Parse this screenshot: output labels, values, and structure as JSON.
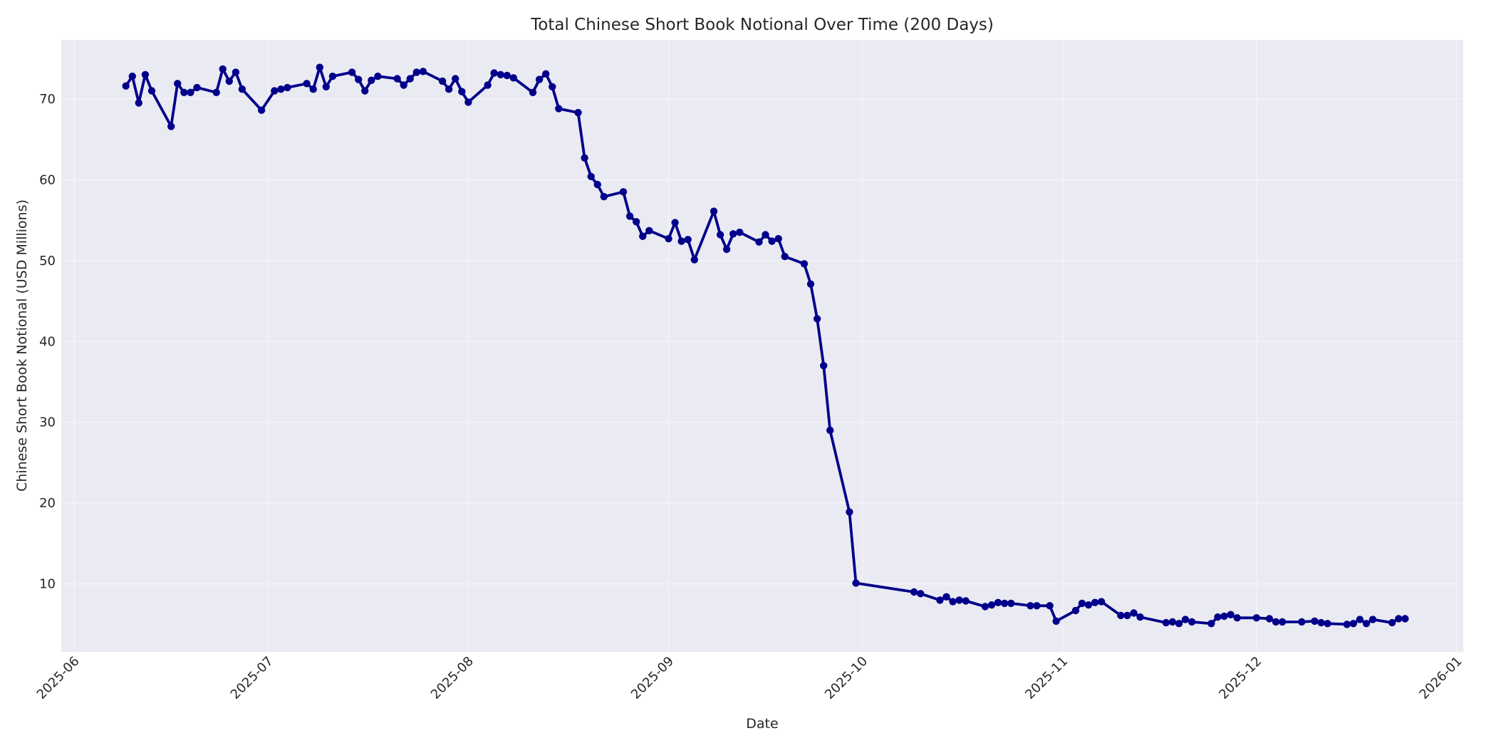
{
  "chart_data": {
    "type": "line",
    "title": "Total Chinese Short Book Notional Over Time (200 Days)",
    "xlabel": "Date",
    "ylabel": "Chinese Short Book Notional (USD Millions)",
    "x_ticks": [
      "2025-06",
      "2025-07",
      "2025-08",
      "2025-09",
      "2025-10",
      "2025-11",
      "2025-12",
      "2026-01"
    ],
    "y_ticks": [
      10,
      20,
      30,
      40,
      50,
      60,
      70
    ],
    "xlim": [
      "2025-05-30",
      "2026-01-02"
    ],
    "ylim": [
      1.6,
      77.3
    ],
    "grid": true,
    "legend": null,
    "line_color": "#00008b",
    "background_color": "#eaeaf2",
    "marker": "circle",
    "series": [
      {
        "name": "Total Chinese Short Book Notional",
        "x": [
          "2025-06-09",
          "2025-06-10",
          "2025-06-11",
          "2025-06-12",
          "2025-06-13",
          "2025-06-16",
          "2025-06-17",
          "2025-06-18",
          "2025-06-19",
          "2025-06-20",
          "2025-06-23",
          "2025-06-24",
          "2025-06-25",
          "2025-06-26",
          "2025-06-27",
          "2025-06-30",
          "2025-07-02",
          "2025-07-03",
          "2025-07-04",
          "2025-07-07",
          "2025-07-08",
          "2025-07-09",
          "2025-07-10",
          "2025-07-11",
          "2025-07-14",
          "2025-07-15",
          "2025-07-16",
          "2025-07-17",
          "2025-07-18",
          "2025-07-21",
          "2025-07-22",
          "2025-07-23",
          "2025-07-24",
          "2025-07-25",
          "2025-07-28",
          "2025-07-29",
          "2025-07-30",
          "2025-07-31",
          "2025-08-01",
          "2025-08-04",
          "2025-08-05",
          "2025-08-06",
          "2025-08-07",
          "2025-08-08",
          "2025-08-11",
          "2025-08-12",
          "2025-08-13",
          "2025-08-14",
          "2025-08-15",
          "2025-08-18",
          "2025-08-19",
          "2025-08-20",
          "2025-08-21",
          "2025-08-22",
          "2025-08-25",
          "2025-08-26",
          "2025-08-27",
          "2025-08-28",
          "2025-08-29",
          "2025-09-01",
          "2025-09-02",
          "2025-09-03",
          "2025-09-04",
          "2025-09-05",
          "2025-09-08",
          "2025-09-09",
          "2025-09-10",
          "2025-09-11",
          "2025-09-12",
          "2025-09-15",
          "2025-09-16",
          "2025-09-17",
          "2025-09-18",
          "2025-09-19",
          "2025-09-22",
          "2025-09-23",
          "2025-09-24",
          "2025-09-25",
          "2025-09-26",
          "2025-09-29",
          "2025-09-30",
          "2025-10-09",
          "2025-10-10",
          "2025-10-13",
          "2025-10-14",
          "2025-10-15",
          "2025-10-16",
          "2025-10-17",
          "2025-10-20",
          "2025-10-21",
          "2025-10-22",
          "2025-10-23",
          "2025-10-24",
          "2025-10-27",
          "2025-10-28",
          "2025-10-30",
          "2025-10-31",
          "2025-11-03",
          "2025-11-04",
          "2025-11-05",
          "2025-11-06",
          "2025-11-07",
          "2025-11-10",
          "2025-11-11",
          "2025-11-12",
          "2025-11-13",
          "2025-11-17",
          "2025-11-18",
          "2025-11-19",
          "2025-11-20",
          "2025-11-21",
          "2025-11-24",
          "2025-11-25",
          "2025-11-26",
          "2025-11-27",
          "2025-11-28",
          "2025-12-01",
          "2025-12-03",
          "2025-12-04",
          "2025-12-05",
          "2025-12-08",
          "2025-12-10",
          "2025-12-11",
          "2025-12-12",
          "2025-12-15",
          "2025-12-16",
          "2025-12-17",
          "2025-12-18",
          "2025-12-19",
          "2025-12-22",
          "2025-12-23",
          "2025-12-24"
        ],
        "y": [
          71.6,
          72.8,
          69.5,
          73.0,
          71.0,
          66.6,
          71.9,
          70.8,
          70.8,
          71.4,
          70.8,
          73.7,
          72.2,
          73.3,
          71.2,
          68.6,
          71.0,
          71.2,
          71.4,
          71.9,
          71.2,
          73.9,
          71.5,
          72.8,
          73.3,
          72.4,
          71.0,
          72.3,
          72.8,
          72.5,
          71.7,
          72.5,
          73.3,
          73.4,
          72.2,
          71.2,
          72.5,
          70.9,
          69.6,
          71.7,
          73.2,
          73.0,
          72.9,
          72.6,
          70.8,
          72.4,
          73.1,
          71.5,
          68.8,
          68.3,
          62.7,
          60.4,
          59.4,
          57.9,
          58.5,
          55.5,
          54.8,
          53.0,
          53.7,
          52.7,
          54.7,
          52.4,
          52.6,
          50.1,
          56.1,
          53.2,
          51.4,
          53.3,
          53.5,
          52.3,
          53.2,
          52.4,
          52.7,
          50.5,
          49.6,
          47.1,
          42.8,
          37.0,
          29.0,
          18.9,
          10.1,
          9.0,
          8.8,
          8.0,
          8.4,
          7.8,
          8.0,
          7.9,
          7.2,
          7.4,
          7.7,
          7.6,
          7.6,
          7.3,
          7.3,
          7.3,
          5.4,
          6.7,
          7.6,
          7.4,
          7.7,
          7.8,
          6.1,
          6.1,
          6.4,
          5.9,
          5.2,
          5.3,
          5.1,
          5.6,
          5.3,
          5.1,
          5.9,
          6.0,
          6.2,
          5.8,
          5.8,
          5.7,
          5.3,
          5.3,
          5.3,
          5.4,
          5.2,
          5.1,
          5.0,
          5.1,
          5.6,
          5.1,
          5.6,
          5.2,
          5.7,
          5.7
        ]
      }
    ]
  }
}
